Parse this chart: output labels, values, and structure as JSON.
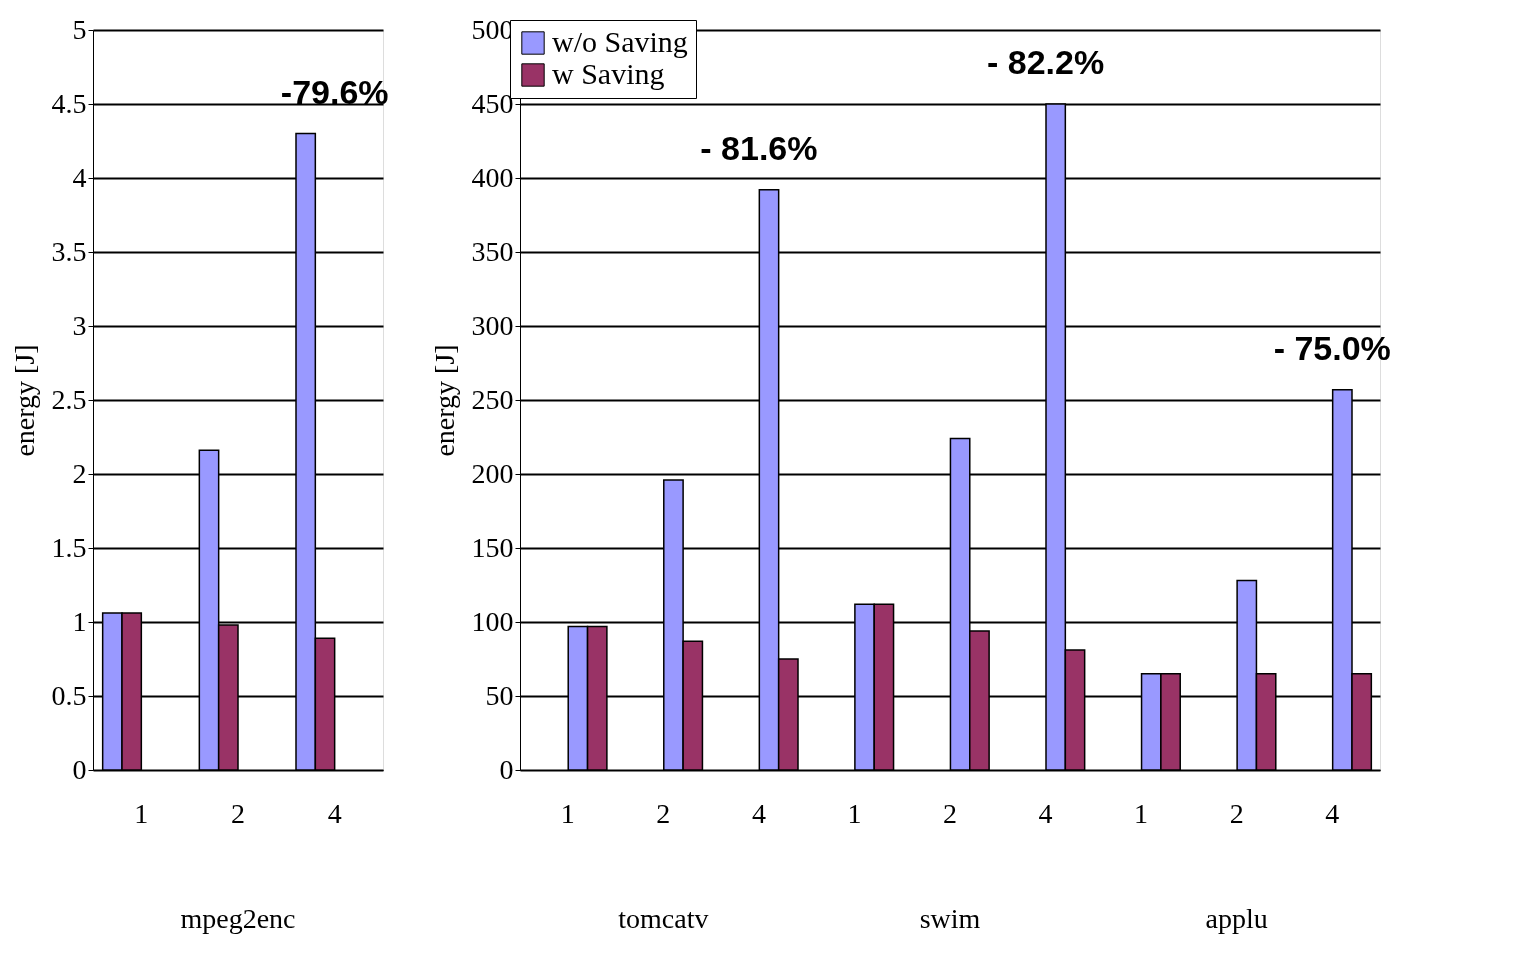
{
  "chart_data": [
    {
      "type": "bar",
      "ylabel": "energy [J]",
      "categories": [
        "1",
        "2",
        "4"
      ],
      "ylim": [
        0,
        5
      ],
      "yticks": [
        0,
        0.5,
        1,
        1.5,
        2,
        2.5,
        3,
        3.5,
        4,
        4.5,
        5
      ],
      "grid": "y",
      "annotations": [
        "-79.6%",
        "mpeg2enc"
      ],
      "series": [
        {
          "color": "#9999ff",
          "values": [
            1.06,
            2.16,
            4.3
          ]
        },
        {
          "color": "#993366",
          "values": [
            1.06,
            0.98,
            0.89
          ]
        }
      ]
    },
    {
      "type": "bar",
      "ylabel": "energy [J]",
      "categories": [
        "1",
        "2",
        "4",
        "1",
        "2",
        "4",
        "1",
        "2",
        "4"
      ],
      "ylim": [
        0,
        500
      ],
      "yticks": [
        0,
        50,
        100,
        150,
        200,
        250,
        300,
        350,
        400,
        450,
        500
      ],
      "grid": "y",
      "legend": "top left",
      "annotations": [
        "- 81.6%",
        "- 82.2%",
        "- 75.0%",
        "tomcatv",
        "swim",
        "applu"
      ],
      "series": [
        {
          "name": "w/o Saving",
          "color": "#9999ff",
          "values": [
            97,
            196,
            392,
            112,
            224,
            450,
            65,
            128,
            257
          ]
        },
        {
          "name": "w Saving",
          "color": "#993366",
          "values": [
            97,
            87,
            75,
            112,
            94,
            81,
            65,
            65,
            65
          ]
        }
      ]
    }
  ]
}
